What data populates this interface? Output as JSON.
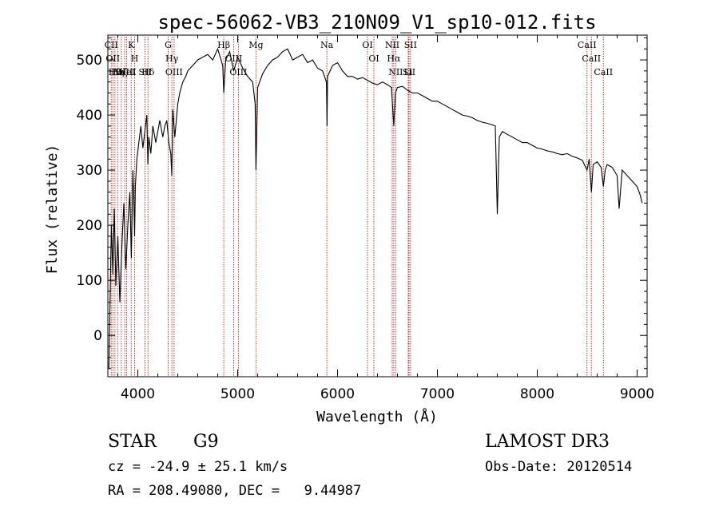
{
  "chart_data": {
    "type": "line",
    "title": "spec-56062-VB3_210N09_V1_sp10-012.fits",
    "xlabel": "Wavelength (Å)",
    "ylabel": "Flux (relative)",
    "xlim": [
      3700,
      9100
    ],
    "ylim": [
      -75,
      545
    ],
    "xticks": [
      4000,
      5000,
      6000,
      7000,
      8000,
      9000
    ],
    "xtick_labels": [
      "4000",
      "5000",
      "6000",
      "7000",
      "8000",
      "9000"
    ],
    "yticks": [
      0,
      100,
      200,
      300,
      400,
      500
    ],
    "ytick_labels": [
      "0",
      "100",
      "200",
      "300",
      "400",
      "500"
    ],
    "line_color": "#000000",
    "marker_color": "#b22222",
    "series": [
      {
        "name": "flux",
        "x": [
          3710,
          3720,
          3735,
          3750,
          3765,
          3780,
          3800,
          3820,
          3840,
          3860,
          3880,
          3900,
          3920,
          3935,
          3950,
          3960,
          3968,
          3975,
          3990,
          4010,
          4030,
          4050,
          4070,
          4090,
          4101,
          4110,
          4130,
          4150,
          4180,
          4200,
          4220,
          4250,
          4270,
          4290,
          4310,
          4330,
          4340,
          4350,
          4370,
          4400,
          4420,
          4450,
          4480,
          4500,
          4550,
          4600,
          4650,
          4700,
          4750,
          4800,
          4850,
          4861,
          4880,
          4920,
          4960,
          5000,
          5050,
          5100,
          5150,
          5175,
          5183,
          5200,
          5250,
          5300,
          5350,
          5400,
          5450,
          5500,
          5550,
          5600,
          5650,
          5700,
          5750,
          5800,
          5850,
          5889,
          5895,
          5900,
          5950,
          6000,
          6050,
          6100,
          6150,
          6200,
          6250,
          6300,
          6350,
          6400,
          6450,
          6500,
          6540,
          6563,
          6580,
          6600,
          6650,
          6700,
          6750,
          6800,
          6850,
          6900,
          6950,
          7000,
          7050,
          7100,
          7150,
          7200,
          7250,
          7300,
          7350,
          7400,
          7450,
          7500,
          7550,
          7580,
          7600,
          7620,
          7650,
          7700,
          7750,
          7800,
          7850,
          7900,
          7950,
          8000,
          8050,
          8100,
          8150,
          8200,
          8250,
          8300,
          8350,
          8400,
          8450,
          8498,
          8520,
          8542,
          8560,
          8600,
          8640,
          8662,
          8680,
          8700,
          8750,
          8800,
          8820,
          8850,
          8900,
          8950,
          9000,
          9030,
          9050
        ],
        "values": [
          -60,
          40,
          200,
          110,
          230,
          90,
          180,
          60,
          160,
          240,
          120,
          200,
          260,
          140,
          300,
          250,
          180,
          270,
          320,
          350,
          380,
          340,
          370,
          400,
          310,
          360,
          330,
          380,
          350,
          370,
          390,
          360,
          380,
          390,
          350,
          330,
          290,
          410,
          360,
          420,
          440,
          460,
          470,
          480,
          490,
          500,
          505,
          510,
          500,
          520,
          490,
          440,
          500,
          515,
          480,
          505,
          485,
          470,
          460,
          420,
          300,
          450,
          475,
          490,
          500,
          505,
          515,
          520,
          500,
          505,
          510,
          495,
          500,
          485,
          480,
          460,
          380,
          470,
          490,
          495,
          480,
          470,
          470,
          465,
          468,
          463,
          458,
          455,
          460,
          455,
          450,
          380,
          440,
          450,
          452,
          445,
          440,
          440,
          435,
          430,
          425,
          425,
          420,
          415,
          410,
          405,
          400,
          398,
          395,
          390,
          387,
          385,
          382,
          380,
          220,
          360,
          370,
          365,
          360,
          355,
          350,
          350,
          345,
          340,
          338,
          335,
          333,
          330,
          328,
          330,
          325,
          322,
          318,
          300,
          320,
          260,
          310,
          315,
          305,
          270,
          300,
          310,
          305,
          290,
          230,
          300,
          290,
          280,
          270,
          255,
          240
        ]
      }
    ],
    "line_markers": [
      {
        "wavelength": 3734,
        "label": "CII"
      },
      {
        "wavelength": 3750,
        "label": "OII"
      },
      {
        "wavelength": 3771,
        "label": "Hθ"
      },
      {
        "wavelength": 3798,
        "label": "Hη"
      },
      {
        "wavelength": 3835,
        "label": "Hζ"
      },
      {
        "wavelength": 3869,
        "label": "NeIII"
      },
      {
        "wavelength": 3889,
        "label": "HeI"
      },
      {
        "wavelength": 3934,
        "label": "K"
      },
      {
        "wavelength": 3968,
        "label": "H"
      },
      {
        "wavelength": 4072,
        "label": "SII"
      },
      {
        "wavelength": 4102,
        "label": "Hδ"
      },
      {
        "wavelength": 4304,
        "label": "G"
      },
      {
        "wavelength": 4341,
        "label": "Hγ"
      },
      {
        "wavelength": 4363,
        "label": "OIII"
      },
      {
        "wavelength": 4861,
        "label": "Hβ"
      },
      {
        "wavelength": 4959,
        "label": "OIII"
      },
      {
        "wavelength": 5007,
        "label": "OIII"
      },
      {
        "wavelength": 5183,
        "label": "Mg"
      },
      {
        "wavelength": 5893,
        "label": "Na"
      },
      {
        "wavelength": 6300,
        "label": "OI"
      },
      {
        "wavelength": 6364,
        "label": "OI"
      },
      {
        "wavelength": 6548,
        "label": "NII"
      },
      {
        "wavelength": 6563,
        "label": "Hα"
      },
      {
        "wavelength": 6583,
        "label": "NII"
      },
      {
        "wavelength": 6708,
        "label": "Li"
      },
      {
        "wavelength": 6716,
        "label": "SII"
      },
      {
        "wavelength": 6731,
        "label": "SII"
      },
      {
        "wavelength": 8498,
        "label": "CaII"
      },
      {
        "wavelength": 8542,
        "label": "CaII"
      },
      {
        "wavelength": 8662,
        "label": "CaII"
      }
    ]
  },
  "info": {
    "object_class": "STAR",
    "subclass": "G9",
    "survey": "LAMOST DR3",
    "redshift_text": "cz = -24.9 ± 25.1 km/s",
    "obs_date": "Obs-Date: 20120514",
    "coords": "RA = 208.49080, DEC =   9.44987"
  }
}
